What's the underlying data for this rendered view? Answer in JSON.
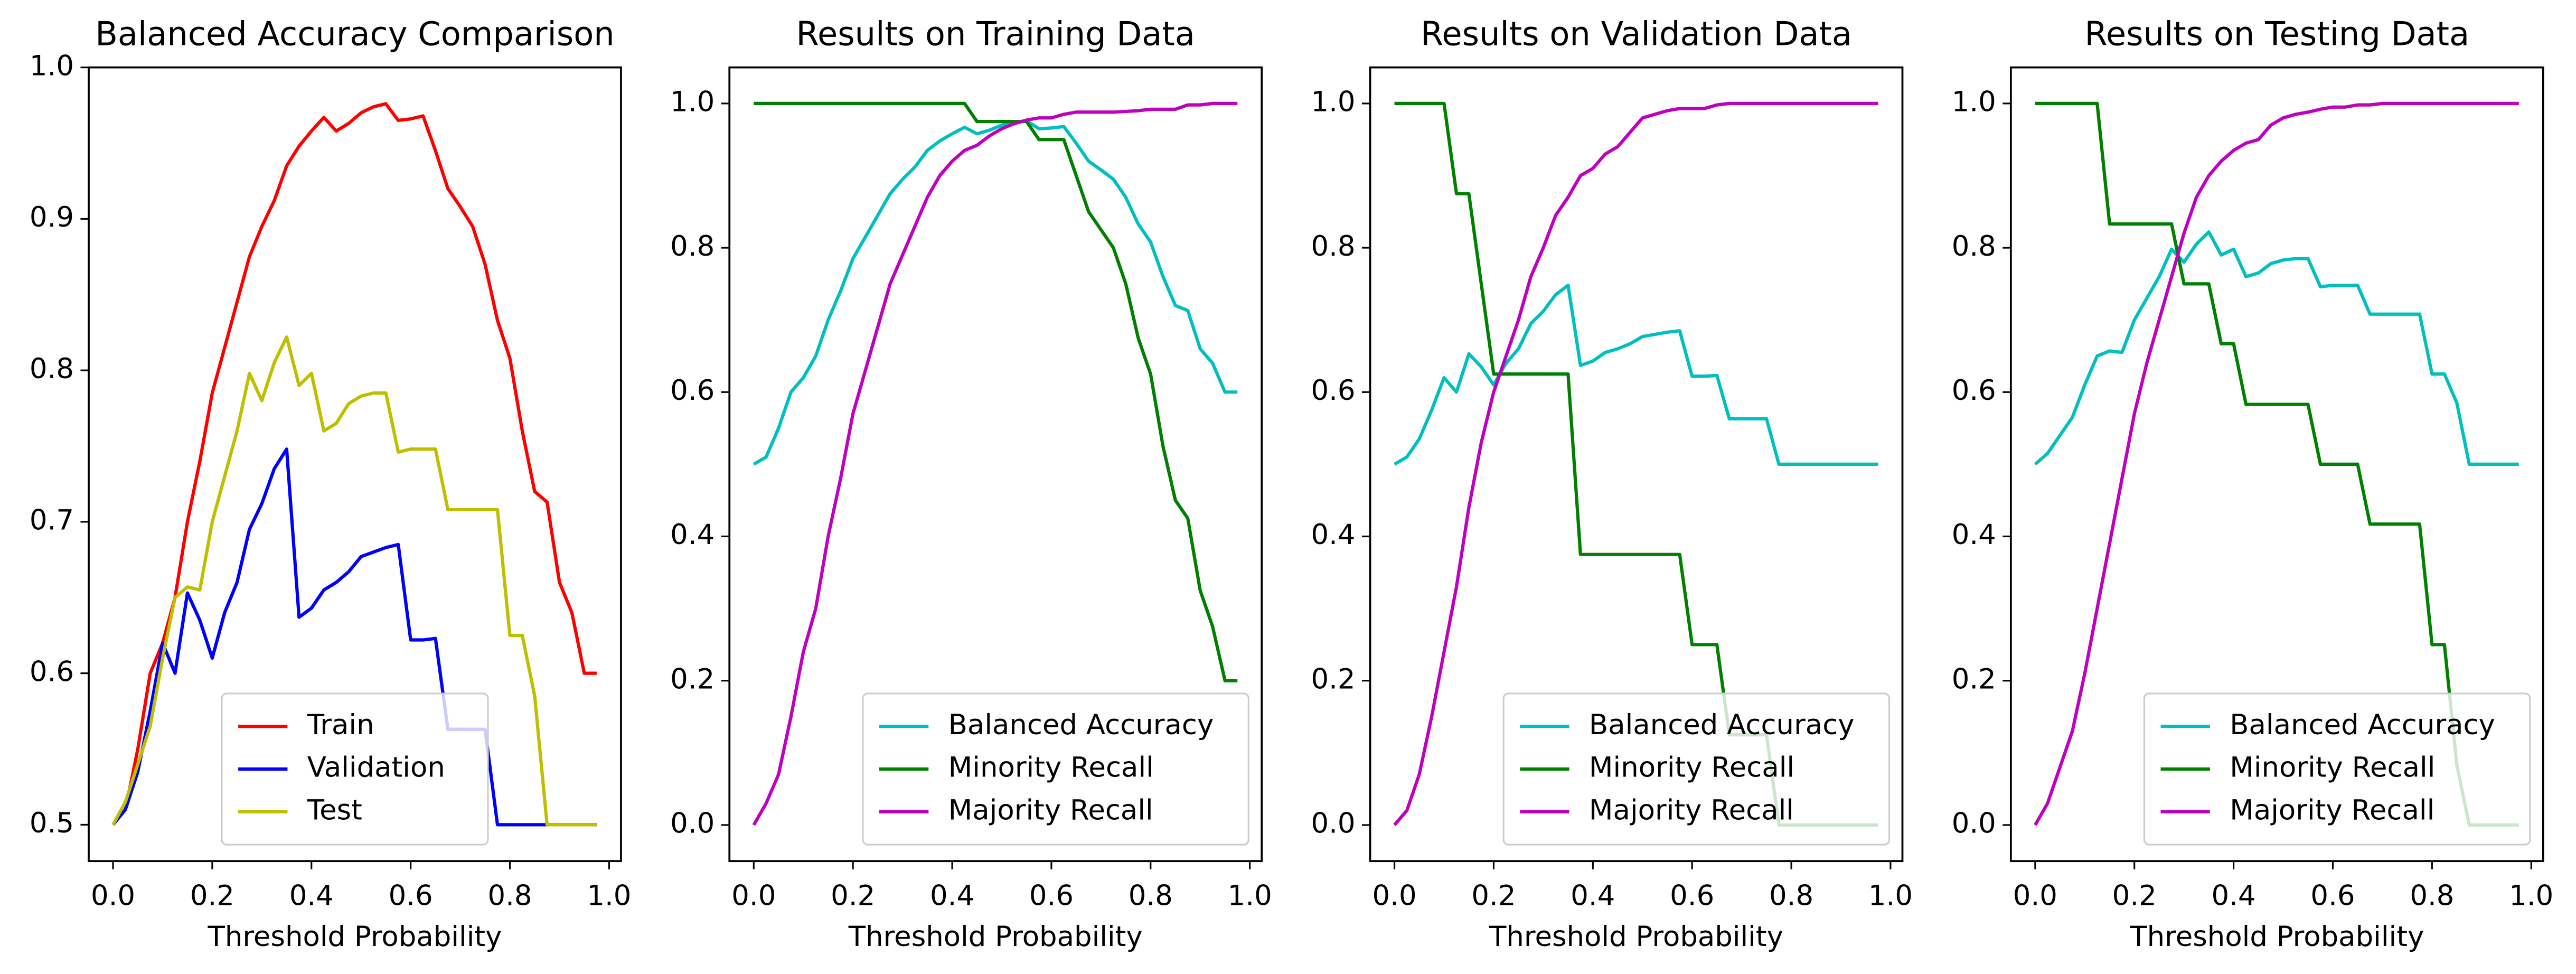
{
  "chart_data": [
    {
      "type": "line",
      "title": "Balanced Accuracy Comparison",
      "xlabel": "Threshold Probability",
      "x": [
        0,
        0.025,
        0.05,
        0.075,
        0.1,
        0.125,
        0.15,
        0.175,
        0.2,
        0.225,
        0.25,
        0.275,
        0.3,
        0.325,
        0.35,
        0.375,
        0.4,
        0.425,
        0.45,
        0.475,
        0.5,
        0.525,
        0.55,
        0.575,
        0.6,
        0.625,
        0.65,
        0.675,
        0.7,
        0.725,
        0.75,
        0.775,
        0.8,
        0.825,
        0.85,
        0.875,
        0.9,
        0.925,
        0.95,
        0.975
      ],
      "series": [
        {
          "name": "Train",
          "color": "#ff0000",
          "values": [
            0.5,
            0.51,
            0.55,
            0.6,
            0.62,
            0.65,
            0.7,
            0.74,
            0.785,
            0.815,
            0.845,
            0.875,
            0.895,
            0.912,
            0.935,
            0.948,
            0.958,
            0.967,
            0.958,
            0.963,
            0.97,
            0.974,
            0.976,
            0.965,
            0.966,
            0.968,
            0.945,
            0.92,
            0.908,
            0.895,
            0.87,
            0.833,
            0.808,
            0.76,
            0.72,
            0.713,
            0.66,
            0.64,
            0.6,
            0.6
          ]
        },
        {
          "name": "Validation",
          "color": "#0000ff",
          "values": [
            0.5,
            0.51,
            0.535,
            0.575,
            0.62,
            0.6,
            0.653,
            0.635,
            0.61,
            0.64,
            0.66,
            0.695,
            0.712,
            0.735,
            0.748,
            0.637,
            0.643,
            0.655,
            0.66,
            0.667,
            0.677,
            0.68,
            0.683,
            0.685,
            0.622,
            0.622,
            0.623,
            0.563,
            0.563,
            0.563,
            0.563,
            0.5,
            0.5,
            0.5,
            0.5,
            0.5,
            0.5,
            0.5,
            0.5,
            0.5
          ]
        },
        {
          "name": "Test",
          "color": "#bfbf00",
          "values": [
            0.5,
            0.515,
            0.54,
            0.565,
            0.61,
            0.65,
            0.657,
            0.655,
            0.7,
            0.73,
            0.76,
            0.798,
            0.78,
            0.805,
            0.822,
            0.79,
            0.798,
            0.76,
            0.765,
            0.778,
            0.783,
            0.785,
            0.785,
            0.746,
            0.748,
            0.748,
            0.748,
            0.708,
            0.708,
            0.708,
            0.708,
            0.708,
            0.625,
            0.625,
            0.585,
            0.5,
            0.5,
            0.5,
            0.5,
            0.5
          ]
        }
      ],
      "xlim": [
        -0.049,
        1.024
      ],
      "xticks": [
        {
          "value": 0,
          "label": "0.0"
        },
        0.2,
        0.4,
        0.6,
        0.8,
        {
          "value": 1,
          "label": "1.0"
        }
      ],
      "ylim": [
        0.476,
        1.0
      ],
      "yticks": [
        0.5,
        0.6,
        0.7,
        0.8,
        0.9,
        {
          "value": 1,
          "label": "1.0"
        }
      ],
      "legend": "lower center",
      "grid": false
    },
    {
      "type": "line",
      "title": "Results on Training Data",
      "xlabel": "Threshold Probability",
      "x": [
        0,
        0.025,
        0.05,
        0.075,
        0.1,
        0.125,
        0.15,
        0.175,
        0.2,
        0.225,
        0.25,
        0.275,
        0.3,
        0.325,
        0.35,
        0.375,
        0.4,
        0.425,
        0.45,
        0.475,
        0.5,
        0.525,
        0.55,
        0.575,
        0.6,
        0.625,
        0.65,
        0.675,
        0.7,
        0.725,
        0.75,
        0.775,
        0.8,
        0.825,
        0.85,
        0.875,
        0.9,
        0.925,
        0.95,
        0.975
      ],
      "series": [
        {
          "name": "Balanced Accuracy",
          "color": "#00bfbf",
          "values": [
            0.5,
            0.51,
            0.55,
            0.6,
            0.62,
            0.65,
            0.7,
            0.74,
            0.785,
            0.815,
            0.845,
            0.875,
            0.895,
            0.912,
            0.935,
            0.948,
            0.958,
            0.967,
            0.958,
            0.963,
            0.97,
            0.974,
            0.976,
            0.965,
            0.966,
            0.968,
            0.945,
            0.92,
            0.908,
            0.895,
            0.87,
            0.833,
            0.808,
            0.76,
            0.72,
            0.713,
            0.66,
            0.64,
            0.6,
            0.6
          ]
        },
        {
          "name": "Minority Recall",
          "color": "#008000",
          "values": [
            1,
            1,
            1,
            1,
            1,
            1,
            1,
            1,
            1,
            1,
            1,
            1,
            1,
            1,
            1,
            1,
            1,
            1,
            0.975,
            0.975,
            0.975,
            0.975,
            0.975,
            0.95,
            0.95,
            0.95,
            0.9,
            0.85,
            0.825,
            0.8,
            0.75,
            0.675,
            0.625,
            0.525,
            0.45,
            0.425,
            0.325,
            0.275,
            0.2,
            0.2
          ]
        },
        {
          "name": "Majority Recall",
          "color": "#bf00bf",
          "values": [
            0,
            0.03,
            0.07,
            0.15,
            0.24,
            0.3,
            0.4,
            0.48,
            0.57,
            0.63,
            0.69,
            0.75,
            0.79,
            0.83,
            0.87,
            0.9,
            0.92,
            0.935,
            0.942,
            0.955,
            0.965,
            0.972,
            0.977,
            0.98,
            0.98,
            0.985,
            0.988,
            0.988,
            0.988,
            0.988,
            0.989,
            0.99,
            0.992,
            0.992,
            0.992,
            0.998,
            0.998,
            1,
            1,
            1
          ]
        }
      ],
      "xlim": [
        -0.049,
        1.024
      ],
      "xticks": [
        {
          "value": 0,
          "label": "0.0"
        },
        0.2,
        0.4,
        0.6,
        0.8,
        {
          "value": 1,
          "label": "1.0"
        }
      ],
      "ylim": [
        -0.05,
        1.05
      ],
      "yticks": [
        {
          "value": 0,
          "label": "0.0"
        },
        0.2,
        0.4,
        0.6,
        0.8,
        {
          "value": 1,
          "label": "1.0"
        }
      ],
      "legend": "lower right",
      "grid": false
    },
    {
      "type": "line",
      "title": "Results on Validation Data",
      "xlabel": "Threshold Probability",
      "x": [
        0,
        0.025,
        0.05,
        0.075,
        0.1,
        0.125,
        0.15,
        0.175,
        0.2,
        0.225,
        0.25,
        0.275,
        0.3,
        0.325,
        0.35,
        0.375,
        0.4,
        0.425,
        0.45,
        0.475,
        0.5,
        0.525,
        0.55,
        0.575,
        0.6,
        0.625,
        0.65,
        0.675,
        0.7,
        0.725,
        0.75,
        0.775,
        0.8,
        0.825,
        0.85,
        0.875,
        0.9,
        0.925,
        0.95,
        0.975
      ],
      "series": [
        {
          "name": "Balanced Accuracy",
          "color": "#00bfbf",
          "values": [
            0.5,
            0.51,
            0.535,
            0.575,
            0.62,
            0.6,
            0.653,
            0.635,
            0.61,
            0.64,
            0.66,
            0.695,
            0.712,
            0.735,
            0.748,
            0.637,
            0.643,
            0.655,
            0.66,
            0.667,
            0.677,
            0.68,
            0.683,
            0.685,
            0.622,
            0.622,
            0.623,
            0.563,
            0.563,
            0.563,
            0.563,
            0.5,
            0.5,
            0.5,
            0.5,
            0.5,
            0.5,
            0.5,
            0.5,
            0.5
          ]
        },
        {
          "name": "Minority Recall",
          "color": "#008000",
          "values": [
            1,
            1,
            1,
            1,
            1,
            0.875,
            0.875,
            0.75,
            0.625,
            0.625,
            0.625,
            0.625,
            0.625,
            0.625,
            0.625,
            0.375,
            0.375,
            0.375,
            0.375,
            0.375,
            0.375,
            0.375,
            0.375,
            0.375,
            0.25,
            0.25,
            0.25,
            0.125,
            0.125,
            0.125,
            0.125,
            0,
            0,
            0,
            0,
            0,
            0,
            0,
            0,
            0
          ]
        },
        {
          "name": "Majority Recall",
          "color": "#bf00bf",
          "values": [
            0,
            0.02,
            0.07,
            0.15,
            0.24,
            0.33,
            0.44,
            0.53,
            0.6,
            0.65,
            0.7,
            0.76,
            0.8,
            0.845,
            0.87,
            0.9,
            0.91,
            0.93,
            0.94,
            0.96,
            0.98,
            0.985,
            0.99,
            0.993,
            0.993,
            0.993,
            0.998,
            1,
            1,
            1,
            1,
            1,
            1,
            1,
            1,
            1,
            1,
            1,
            1,
            1
          ]
        }
      ],
      "xlim": [
        -0.049,
        1.024
      ],
      "xticks": [
        {
          "value": 0,
          "label": "0.0"
        },
        0.2,
        0.4,
        0.6,
        0.8,
        {
          "value": 1,
          "label": "1.0"
        }
      ],
      "ylim": [
        -0.05,
        1.05
      ],
      "yticks": [
        {
          "value": 0,
          "label": "0.0"
        },
        0.2,
        0.4,
        0.6,
        0.8,
        {
          "value": 1,
          "label": "1.0"
        }
      ],
      "legend": "lower right",
      "grid": false
    },
    {
      "type": "line",
      "title": "Results on Testing Data",
      "xlabel": "Threshold Probability",
      "x": [
        0,
        0.025,
        0.05,
        0.075,
        0.1,
        0.125,
        0.15,
        0.175,
        0.2,
        0.225,
        0.25,
        0.275,
        0.3,
        0.325,
        0.35,
        0.375,
        0.4,
        0.425,
        0.45,
        0.475,
        0.5,
        0.525,
        0.55,
        0.575,
        0.6,
        0.625,
        0.65,
        0.675,
        0.7,
        0.725,
        0.75,
        0.775,
        0.8,
        0.825,
        0.85,
        0.875,
        0.9,
        0.925,
        0.95,
        0.975
      ],
      "series": [
        {
          "name": "Balanced Accuracy",
          "color": "#00bfbf",
          "values": [
            0.5,
            0.515,
            0.54,
            0.565,
            0.61,
            0.65,
            0.657,
            0.655,
            0.7,
            0.73,
            0.76,
            0.798,
            0.78,
            0.805,
            0.822,
            0.79,
            0.798,
            0.76,
            0.765,
            0.778,
            0.783,
            0.785,
            0.785,
            0.746,
            0.748,
            0.748,
            0.748,
            0.708,
            0.708,
            0.708,
            0.708,
            0.708,
            0.625,
            0.625,
            0.585,
            0.5,
            0.5,
            0.5,
            0.5,
            0.5
          ]
        },
        {
          "name": "Minority Recall",
          "color": "#008000",
          "values": [
            1,
            1,
            1,
            1,
            1,
            1,
            0.833,
            0.833,
            0.833,
            0.833,
            0.833,
            0.833,
            0.75,
            0.75,
            0.75,
            0.667,
            0.667,
            0.583,
            0.583,
            0.583,
            0.583,
            0.583,
            0.583,
            0.5,
            0.5,
            0.5,
            0.5,
            0.417,
            0.417,
            0.417,
            0.417,
            0.417,
            0.25,
            0.25,
            0.083,
            0,
            0,
            0,
            0,
            0
          ]
        },
        {
          "name": "Majority Recall",
          "color": "#bf00bf",
          "values": [
            0,
            0.03,
            0.08,
            0.13,
            0.21,
            0.3,
            0.39,
            0.48,
            0.57,
            0.64,
            0.7,
            0.76,
            0.82,
            0.87,
            0.9,
            0.92,
            0.935,
            0.945,
            0.95,
            0.97,
            0.98,
            0.985,
            0.988,
            0.992,
            0.995,
            0.995,
            0.998,
            0.998,
            1,
            1,
            1,
            1,
            1,
            1,
            1,
            1,
            1,
            1,
            1,
            1
          ]
        }
      ],
      "xlim": [
        -0.049,
        1.024
      ],
      "xticks": [
        {
          "value": 0,
          "label": "0.0"
        },
        0.2,
        0.4,
        0.6,
        0.8,
        {
          "value": 1,
          "label": "1.0"
        }
      ],
      "ylim": [
        -0.05,
        1.05
      ],
      "yticks": [
        {
          "value": 0,
          "label": "0.0"
        },
        0.2,
        0.4,
        0.6,
        0.8,
        {
          "value": 1,
          "label": "1.0"
        }
      ],
      "legend": "lower right",
      "grid": false
    }
  ]
}
